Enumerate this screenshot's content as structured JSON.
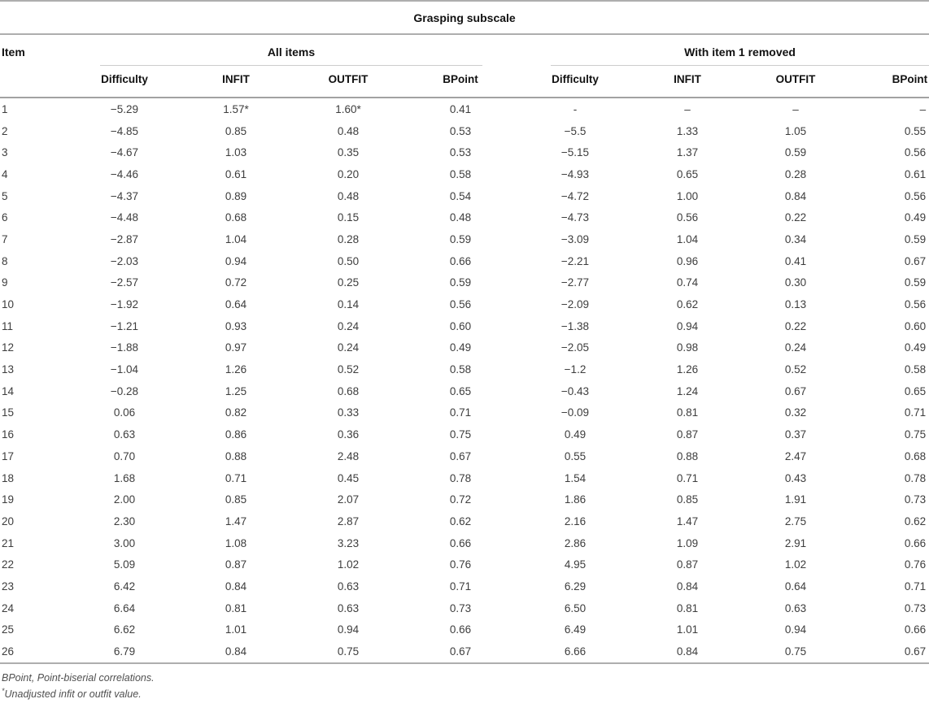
{
  "table": {
    "title": "Grasping subscale",
    "item_header": "Item",
    "groups": [
      {
        "label": "All items",
        "columns": [
          "Difficulty",
          "INFIT",
          "OUTFIT",
          "BPoint"
        ]
      },
      {
        "label": "With item 1 removed",
        "columns": [
          "Difficulty",
          "INFIT",
          "OUTFIT",
          "BPoint"
        ]
      }
    ],
    "rows": [
      [
        "1",
        "−5.29",
        "1.57*",
        "1.60*",
        "0.41",
        "-",
        "–",
        "–",
        "–"
      ],
      [
        "2",
        "−4.85",
        "0.85",
        "0.48",
        "0.53",
        "−5.5",
        "1.33",
        "1.05",
        "0.55"
      ],
      [
        "3",
        "−4.67",
        "1.03",
        "0.35",
        "0.53",
        "−5.15",
        "1.37",
        "0.59",
        "0.56"
      ],
      [
        "4",
        "−4.46",
        "0.61",
        "0.20",
        "0.58",
        "−4.93",
        "0.65",
        "0.28",
        "0.61"
      ],
      [
        "5",
        "−4.37",
        "0.89",
        "0.48",
        "0.54",
        "−4.72",
        "1.00",
        "0.84",
        "0.56"
      ],
      [
        "6",
        "−4.48",
        "0.68",
        "0.15",
        "0.48",
        "−4.73",
        "0.56",
        "0.22",
        "0.49"
      ],
      [
        "7",
        "−2.87",
        "1.04",
        "0.28",
        "0.59",
        "−3.09",
        "1.04",
        "0.34",
        "0.59"
      ],
      [
        "8",
        "−2.03",
        "0.94",
        "0.50",
        "0.66",
        "−2.21",
        "0.96",
        "0.41",
        "0.67"
      ],
      [
        "9",
        "−2.57",
        "0.72",
        "0.25",
        "0.59",
        "−2.77",
        "0.74",
        "0.30",
        "0.59"
      ],
      [
        "10",
        "−1.92",
        "0.64",
        "0.14",
        "0.56",
        "−2.09",
        "0.62",
        "0.13",
        "0.56"
      ],
      [
        "11",
        "−1.21",
        "0.93",
        "0.24",
        "0.60",
        "−1.38",
        "0.94",
        "0.22",
        "0.60"
      ],
      [
        "12",
        "−1.88",
        "0.97",
        "0.24",
        "0.49",
        "−2.05",
        "0.98",
        "0.24",
        "0.49"
      ],
      [
        "13",
        "−1.04",
        "1.26",
        "0.52",
        "0.58",
        "−1.2",
        "1.26",
        "0.52",
        "0.58"
      ],
      [
        "14",
        "−0.28",
        "1.25",
        "0.68",
        "0.65",
        "−0.43",
        "1.24",
        "0.67",
        "0.65"
      ],
      [
        "15",
        "0.06",
        "0.82",
        "0.33",
        "0.71",
        "−0.09",
        "0.81",
        "0.32",
        "0.71"
      ],
      [
        "16",
        "0.63",
        "0.86",
        "0.36",
        "0.75",
        "0.49",
        "0.87",
        "0.37",
        "0.75"
      ],
      [
        "17",
        "0.70",
        "0.88",
        "2.48",
        "0.67",
        "0.55",
        "0.88",
        "2.47",
        "0.68"
      ],
      [
        "18",
        "1.68",
        "0.71",
        "0.45",
        "0.78",
        "1.54",
        "0.71",
        "0.43",
        "0.78"
      ],
      [
        "19",
        "2.00",
        "0.85",
        "2.07",
        "0.72",
        "1.86",
        "0.85",
        "1.91",
        "0.73"
      ],
      [
        "20",
        "2.30",
        "1.47",
        "2.87",
        "0.62",
        "2.16",
        "1.47",
        "2.75",
        "0.62"
      ],
      [
        "21",
        "3.00",
        "1.08",
        "3.23",
        "0.66",
        "2.86",
        "1.09",
        "2.91",
        "0.66"
      ],
      [
        "22",
        "5.09",
        "0.87",
        "1.02",
        "0.76",
        "4.95",
        "0.87",
        "1.02",
        "0.76"
      ],
      [
        "23",
        "6.42",
        "0.84",
        "0.63",
        "0.71",
        "6.29",
        "0.84",
        "0.64",
        "0.71"
      ],
      [
        "24",
        "6.64",
        "0.81",
        "0.63",
        "0.73",
        "6.50",
        "0.81",
        "0.63",
        "0.73"
      ],
      [
        "25",
        "6.62",
        "1.01",
        "0.94",
        "0.66",
        "6.49",
        "1.01",
        "0.94",
        "0.66"
      ],
      [
        "26",
        "6.79",
        "0.84",
        "0.75",
        "0.67",
        "6.66",
        "0.84",
        "0.75",
        "0.67"
      ]
    ],
    "footnotes": {
      "line1": "BPoint, Point-biserial correlations.",
      "line2_marker": "*",
      "line2": "Unadjusted infit or outfit value."
    }
  }
}
